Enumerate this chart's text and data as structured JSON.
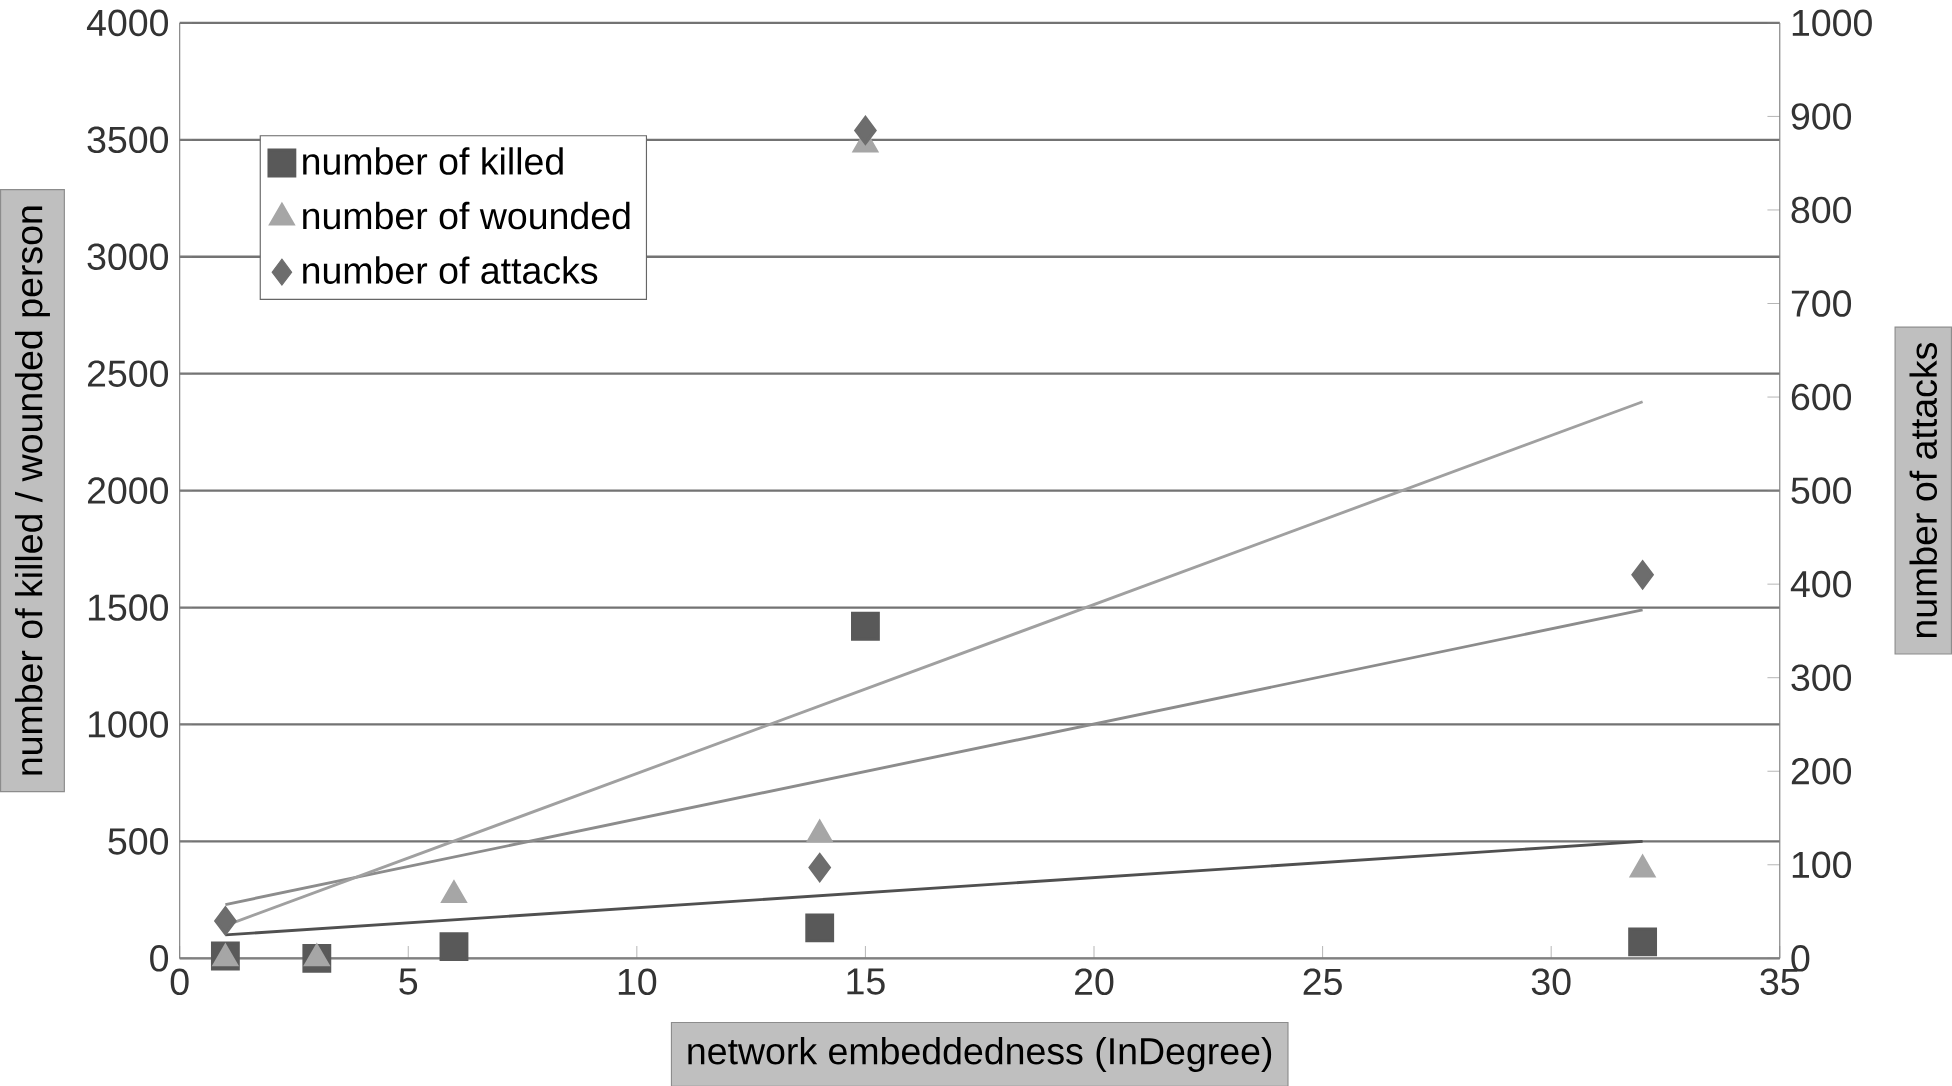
{
  "chart_data": {
    "type": "scatter",
    "xlabel": "network embeddedness (InDegree)",
    "ylabel": "number of killed / wounded person",
    "y2label": "number of attacks",
    "xlim": [
      0,
      35
    ],
    "xticks": [
      0,
      5,
      10,
      15,
      20,
      25,
      30,
      35
    ],
    "ylim": [
      0,
      4000
    ],
    "yticks": [
      0,
      500,
      1000,
      1500,
      2000,
      2500,
      3000,
      3500,
      4000
    ],
    "y2lim": [
      0,
      1000
    ],
    "y2ticks": [
      0,
      100,
      200,
      300,
      400,
      500,
      600,
      700,
      800,
      900,
      1000
    ],
    "grid": "y",
    "legend": "top left",
    "series": [
      {
        "name": "number of killed",
        "marker": "square",
        "color": "#595959",
        "x": [
          1,
          3,
          6,
          14,
          15,
          32
        ],
        "values": [
          10,
          0,
          50,
          130,
          1420,
          70
        ]
      },
      {
        "name": "number of wounded",
        "marker": "triangle",
        "color": "#a6a6a6",
        "x": [
          1,
          3,
          6,
          14,
          15,
          32
        ],
        "values": [
          0,
          0,
          270,
          530,
          3480,
          380
        ]
      },
      {
        "name": "number of attacks",
        "marker": "diamond",
        "color": "#6d6d6d",
        "axis": "y2",
        "x": [
          1,
          14,
          15,
          32
        ],
        "values": [
          40,
          97,
          885,
          410
        ]
      },
      {
        "type": "line",
        "marker": "none",
        "color": "#a0a0a0",
        "axis": "y2",
        "x": [
          1,
          32
        ],
        "values": [
          35,
          595
        ]
      },
      {
        "type": "line",
        "marker": "none",
        "color": "#8c8c8c",
        "x": [
          1,
          32
        ],
        "values": [
          230,
          1490
        ]
      },
      {
        "type": "line",
        "marker": "none",
        "color": "#505050",
        "x": [
          1,
          32
        ],
        "values": [
          100,
          500
        ]
      }
    ]
  }
}
